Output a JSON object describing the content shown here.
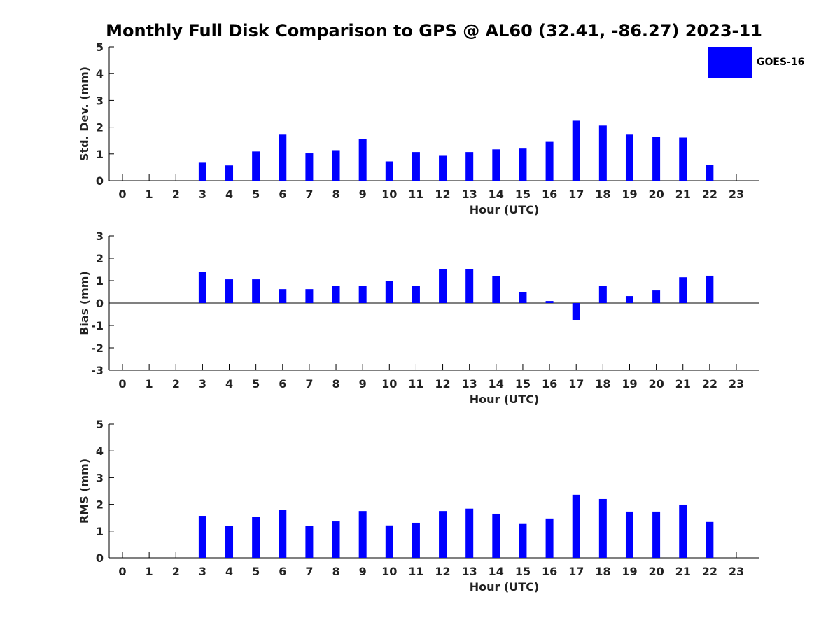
{
  "title": "Monthly Full Disk Comparison to GPS @ AL60 (32.41, -86.27) 2023-11",
  "legend": {
    "label": "GOES-16",
    "color": "#0000ff"
  },
  "chart_data": [
    {
      "type": "bar",
      "name": "std_dev",
      "ylabel": "Std. Dev. (mm)",
      "xlabel": "Hour (UTC)",
      "ylim": [
        0,
        5
      ],
      "yticks": [
        0,
        1,
        2,
        3,
        4,
        5
      ],
      "categories": [
        "0",
        "1",
        "2",
        "3",
        "4",
        "5",
        "6",
        "7",
        "8",
        "9",
        "10",
        "11",
        "12",
        "13",
        "14",
        "15",
        "16",
        "17",
        "18",
        "19",
        "20",
        "21",
        "22",
        "23"
      ],
      "series": [
        {
          "name": "GOES-16",
          "color": "#0000ff",
          "values": [
            null,
            null,
            null,
            0.67,
            0.57,
            1.09,
            1.72,
            1.02,
            1.14,
            1.57,
            0.72,
            1.07,
            0.93,
            1.07,
            1.17,
            1.2,
            1.45,
            2.24,
            2.06,
            1.72,
            1.64,
            1.61,
            0.6,
            null
          ]
        }
      ]
    },
    {
      "type": "bar",
      "name": "bias",
      "ylabel": "Bias (mm)",
      "xlabel": "Hour (UTC)",
      "ylim": [
        -3,
        3
      ],
      "yticks": [
        -3,
        -2,
        -1,
        0,
        1,
        2,
        3
      ],
      "categories": [
        "0",
        "1",
        "2",
        "3",
        "4",
        "5",
        "6",
        "7",
        "8",
        "9",
        "10",
        "11",
        "12",
        "13",
        "14",
        "15",
        "16",
        "17",
        "18",
        "19",
        "20",
        "21",
        "22",
        "23"
      ],
      "series": [
        {
          "name": "GOES-16",
          "color": "#0000ff",
          "values": [
            null,
            null,
            null,
            1.4,
            1.06,
            1.06,
            0.62,
            0.62,
            0.75,
            0.78,
            0.97,
            0.78,
            1.5,
            1.5,
            1.19,
            0.5,
            0.09,
            -0.75,
            0.78,
            0.31,
            0.56,
            1.15,
            1.22,
            null
          ]
        }
      ]
    },
    {
      "type": "bar",
      "name": "rms",
      "ylabel": "RMS (mm)",
      "xlabel": "Hour (UTC)",
      "ylim": [
        0,
        5
      ],
      "yticks": [
        0,
        1,
        2,
        3,
        4,
        5
      ],
      "categories": [
        "0",
        "1",
        "2",
        "3",
        "4",
        "5",
        "6",
        "7",
        "8",
        "9",
        "10",
        "11",
        "12",
        "13",
        "14",
        "15",
        "16",
        "17",
        "18",
        "19",
        "20",
        "21",
        "22",
        "23"
      ],
      "series": [
        {
          "name": "GOES-16",
          "color": "#0000ff",
          "values": [
            null,
            null,
            null,
            1.57,
            1.18,
            1.53,
            1.8,
            1.18,
            1.36,
            1.75,
            1.21,
            1.31,
            1.75,
            1.84,
            1.65,
            1.29,
            1.47,
            2.36,
            2.2,
            1.73,
            1.73,
            1.99,
            1.34,
            null
          ]
        }
      ]
    }
  ]
}
